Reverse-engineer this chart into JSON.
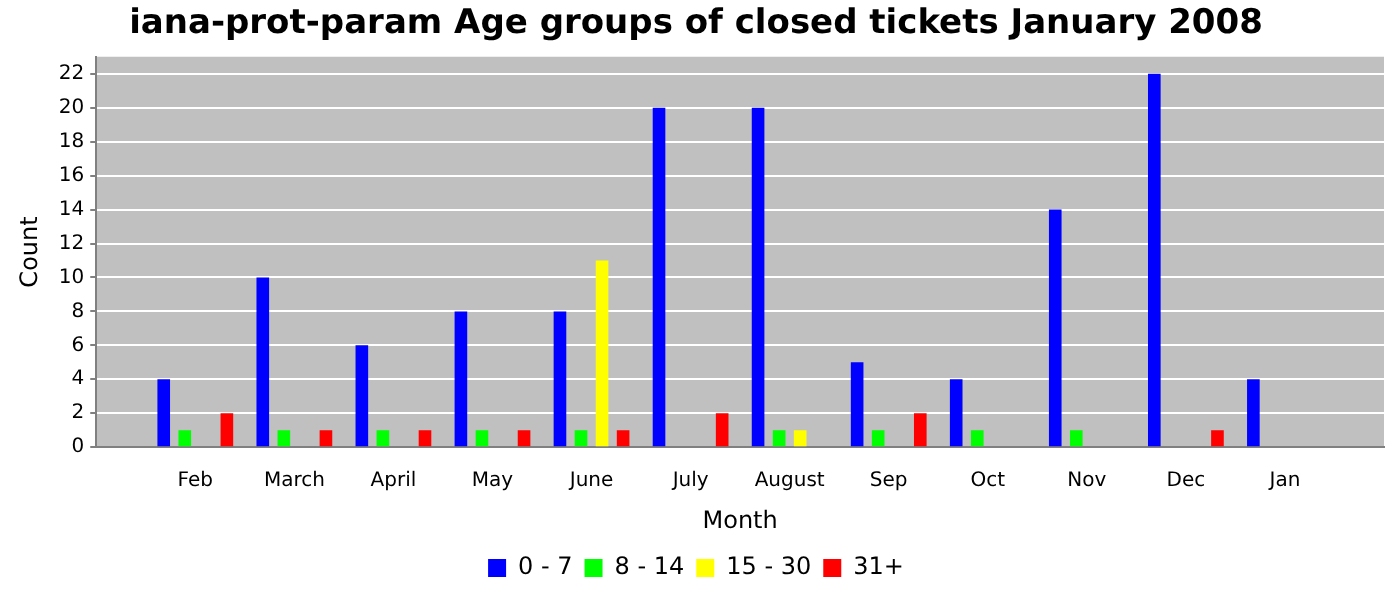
{
  "chart_data": {
    "type": "bar",
    "title": "iana-prot-param Age groups of closed tickets January 2008",
    "xlabel": "Month",
    "ylabel": "Count",
    "categories": [
      null,
      "Feb",
      "March",
      "April",
      "May",
      "June",
      "July",
      "August",
      "Sep",
      "Oct",
      "Nov",
      "Dec",
      "Jan",
      null
    ],
    "series": [
      {
        "name": "0 - 7",
        "color": "#0000ff",
        "values": [
          null,
          4,
          10,
          6,
          8,
          8,
          20,
          20,
          5,
          4,
          14,
          22,
          4,
          null
        ]
      },
      {
        "name": "8 - 14",
        "color": "#00ff00",
        "values": [
          null,
          1,
          1,
          1,
          1,
          1,
          0,
          1,
          1,
          1,
          1,
          0,
          0,
          null
        ]
      },
      {
        "name": "15 - 30",
        "color": "#ffff00",
        "values": [
          null,
          0,
          0,
          0,
          0,
          11,
          0,
          1,
          0,
          0,
          0,
          0,
          0,
          null
        ]
      },
      {
        "name": "31+",
        "color": "#ff0000",
        "values": [
          null,
          2,
          1,
          1,
          1,
          1,
          2,
          0,
          2,
          0,
          0,
          1,
          0,
          null
        ]
      }
    ],
    "ylim": [
      0,
      23
    ],
    "yticks": [
      0,
      2,
      4,
      6,
      8,
      10,
      12,
      14,
      16,
      18,
      20,
      22
    ],
    "grid": "y",
    "legend": "bottom"
  }
}
